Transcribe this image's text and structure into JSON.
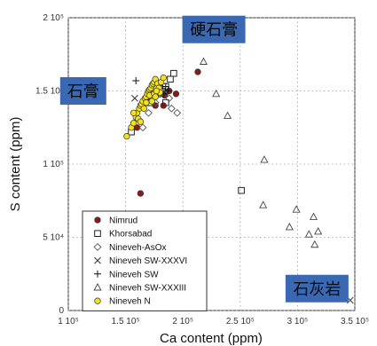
{
  "chart_data": {
    "type": "scatter",
    "xlabel": "Ca content (ppm)",
    "ylabel": "S content (ppm)",
    "xlim": [
      100000,
      350000
    ],
    "ylim": [
      0,
      200000
    ],
    "x_ticks": [
      {
        "value": 100000,
        "label": "1 10⁵"
      },
      {
        "value": 150000,
        "label": "1.5 10⁵"
      },
      {
        "value": 200000,
        "label": "2 10⁵"
      },
      {
        "value": 250000,
        "label": "2.5 10⁵"
      },
      {
        "value": 300000,
        "label": "3 10⁵"
      },
      {
        "value": 350000,
        "label": "3.5 10⁵"
      }
    ],
    "y_ticks": [
      {
        "value": 0,
        "label": "0"
      },
      {
        "value": 50000,
        "label": "5 10⁴"
      },
      {
        "value": 100000,
        "label": "1 10⁵"
      },
      {
        "value": 150000,
        "label": "1.5 10⁵"
      },
      {
        "value": 200000,
        "label": "2 10⁵"
      }
    ],
    "grid": true,
    "legend_position": "bottom-left",
    "annotations": [
      {
        "text": "硬石膏",
        "x": 227000,
        "y": 192000
      },
      {
        "text": "石膏",
        "x": 113000,
        "y": 150000
      },
      {
        "text": "石灰岩",
        "x": 317000,
        "y": 15000
      }
    ],
    "series": [
      {
        "name": "Nimrud",
        "marker": "filled-circle",
        "color": "#8b1a1a",
        "points": [
          [
            160000,
            125000
          ],
          [
            163000,
            80000
          ],
          [
            178000,
            150000
          ],
          [
            180000,
            155000
          ],
          [
            184000,
            147000
          ],
          [
            188000,
            150000
          ],
          [
            194000,
            148000
          ],
          [
            213000,
            163000
          ],
          [
            183000,
            140000
          ],
          [
            176000,
            140000
          ]
        ]
      },
      {
        "name": "Khorsabad",
        "marker": "open-square",
        "color": "#222222",
        "points": [
          [
            155000,
            122000
          ],
          [
            167000,
            142000
          ],
          [
            172000,
            142000
          ],
          [
            178000,
            148000
          ],
          [
            182000,
            150000
          ],
          [
            185000,
            153000
          ],
          [
            189000,
            158000
          ],
          [
            192000,
            162000
          ],
          [
            185000,
            142000
          ],
          [
            251000,
            82000
          ]
        ]
      },
      {
        "name": "Nineveh-AsOx",
        "marker": "open-diamond",
        "color": "#555555",
        "points": [
          [
            165000,
            125000
          ],
          [
            170000,
            135000
          ],
          [
            176000,
            142000
          ],
          [
            180000,
            148000
          ],
          [
            188000,
            145000
          ],
          [
            195000,
            135000
          ],
          [
            190000,
            138000
          ]
        ]
      },
      {
        "name": "Nineveh SW-XXXVI",
        "marker": "x",
        "color": "#333333",
        "points": [
          [
            158000,
            145000
          ],
          [
            170000,
            145000
          ],
          [
            183000,
            149000
          ],
          [
            346000,
            7000
          ]
        ]
      },
      {
        "name": "Nineveh SW",
        "marker": "plus",
        "color": "#111111",
        "points": [
          [
            159000,
            157000
          ],
          [
            183000,
            148000
          ],
          [
            185000,
            153000
          ],
          [
            187000,
            150000
          ]
        ]
      },
      {
        "name": "Nineveh SW-XXXIII",
        "marker": "open-triangle",
        "color": "#444444",
        "points": [
          [
            218000,
            170000
          ],
          [
            229000,
            148000
          ],
          [
            239000,
            133000
          ],
          [
            271000,
            103000
          ],
          [
            270000,
            72000
          ],
          [
            293000,
            57000
          ],
          [
            299000,
            69000
          ],
          [
            310000,
            52000
          ],
          [
            314000,
            64000
          ],
          [
            318000,
            54000
          ],
          [
            315000,
            45000
          ]
        ]
      },
      {
        "name": "Nineveh N",
        "marker": "filled-circle",
        "color": "#f5e21a",
        "points": [
          [
            151000,
            119000
          ],
          [
            155000,
            125000
          ],
          [
            157000,
            128000
          ],
          [
            159000,
            132000
          ],
          [
            160000,
            135000
          ],
          [
            162000,
            138000
          ],
          [
            163000,
            140000
          ],
          [
            164000,
            141000
          ],
          [
            165000,
            143000
          ],
          [
            167000,
            145000
          ],
          [
            168000,
            146000
          ],
          [
            169000,
            148000
          ],
          [
            170000,
            150000
          ],
          [
            171000,
            151000
          ],
          [
            172000,
            152000
          ],
          [
            173000,
            154000
          ],
          [
            174000,
            155000
          ],
          [
            175000,
            156000
          ],
          [
            176000,
            158000
          ],
          [
            178000,
            155000
          ],
          [
            179000,
            152000
          ],
          [
            180000,
            149000
          ],
          [
            166000,
            138000
          ],
          [
            168000,
            142000
          ],
          [
            171000,
            147000
          ],
          [
            173000,
            143000
          ],
          [
            175000,
            148000
          ],
          [
            177000,
            150000
          ],
          [
            161000,
            131000
          ],
          [
            163000,
            129000
          ],
          [
            157000,
            135000
          ],
          [
            181000,
            156000
          ],
          [
            183000,
            159000
          ],
          [
            176000,
            146000
          ]
        ]
      }
    ]
  }
}
